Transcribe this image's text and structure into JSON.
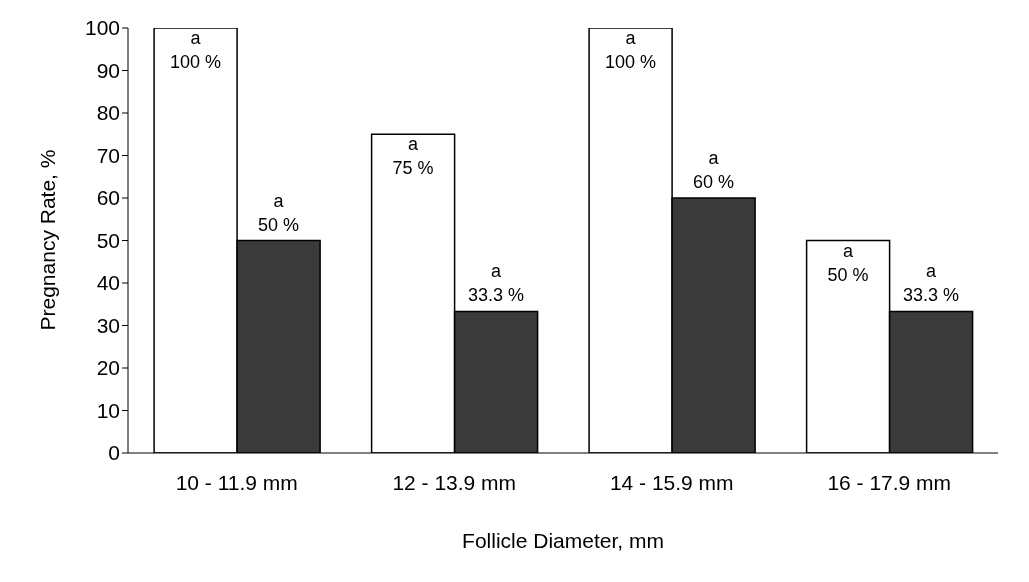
{
  "chart_data": {
    "type": "bar",
    "xlabel": "Follicle Diameter, mm",
    "ylabel": "Pregnancy Rate, %",
    "categories": [
      "10 - 11.9 mm",
      "12 - 13.9 mm",
      "14 - 15.9 mm",
      "16 - 17.9 mm"
    ],
    "series": [
      {
        "color": "#ffffff",
        "values": [
          100,
          75,
          100,
          50
        ],
        "value_labels": [
          "100 %",
          "75 %",
          "100 %",
          "50 %"
        ]
      },
      {
        "color": "#3a3a3a",
        "values": [
          50,
          33.3,
          60,
          33.3
        ],
        "value_labels": [
          "50 %",
          "33.3 %",
          "60 %",
          "33.3 %"
        ]
      }
    ],
    "ylim": [
      0,
      100
    ],
    "yticks": [
      0,
      10,
      20,
      30,
      40,
      50,
      60,
      70,
      80,
      90,
      100
    ],
    "grid": false,
    "legend": false,
    "annotations": [
      {
        "text": "a",
        "x": "10 - 11.9 mm",
        "y": 100
      },
      {
        "text": "a",
        "x": "10 - 11.9 mm",
        "y": 50
      },
      {
        "text": "a",
        "x": "12 - 13.9 mm",
        "y": 75
      },
      {
        "text": "a",
        "x": "12 - 13.9 mm",
        "y": 33.3
      },
      {
        "text": "a",
        "x": "14 - 15.9 mm",
        "y": 100
      },
      {
        "text": "a",
        "x": "14 - 15.9 mm",
        "y": 60
      },
      {
        "text": "a",
        "x": "16 - 17.9 mm",
        "y": 50
      },
      {
        "text": "a",
        "x": "16 - 17.9 mm",
        "y": 33.3
      }
    ]
  }
}
